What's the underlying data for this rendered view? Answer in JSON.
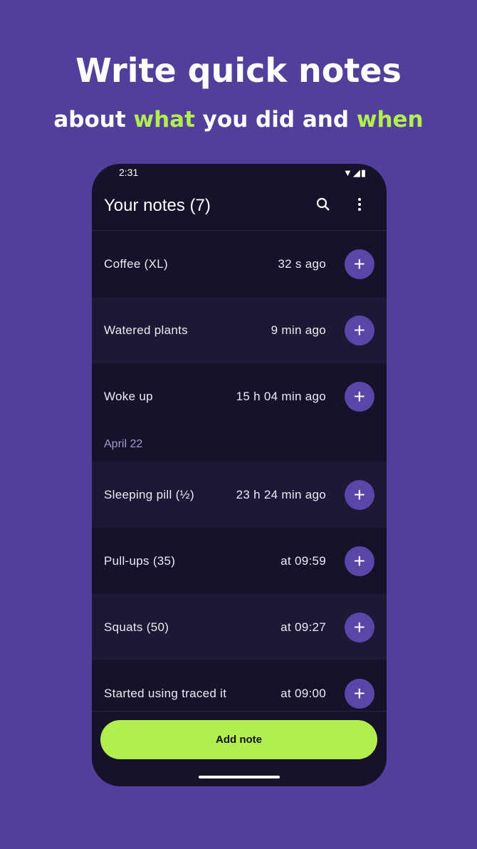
{
  "headline": {
    "title": "Write quick notes",
    "subtitle_parts": [
      "about ",
      "what",
      " you did and ",
      "when"
    ]
  },
  "colors": {
    "background": "#523f9c",
    "accent": "#b2ee4f",
    "phone": "#151229",
    "plus_button": "#5a45a8"
  },
  "status_bar": {
    "time": "2:31",
    "icons": "wifi, signal, battery"
  },
  "app_bar": {
    "title": "Your notes (7)",
    "search_icon": "search-icon",
    "menu_icon": "more-vert-icon"
  },
  "notes_today": [
    {
      "name": "Coffee (XL)",
      "time": "32 s ago"
    },
    {
      "name": "Watered plants",
      "time": "9 min ago"
    },
    {
      "name": "Woke up",
      "time": "15 h 04 min ago"
    }
  ],
  "date_header": "April 22",
  "notes_earlier": [
    {
      "name": "Sleeping pill (½)",
      "time": "23 h 24 min ago"
    },
    {
      "name": "Pull-ups (35)",
      "time": "at 09:59"
    },
    {
      "name": "Squats (50)",
      "time": "at 09:27"
    },
    {
      "name": "Started using traced it",
      "time": "at 09:00"
    }
  ],
  "add_button": "Add note"
}
